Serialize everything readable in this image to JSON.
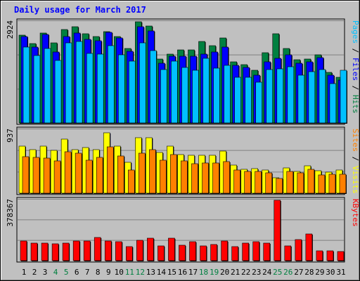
{
  "chart_data": {
    "type": "bar",
    "title": "Daily usage for March 2017",
    "categories": [
      "1",
      "2",
      "3",
      "4",
      "5",
      "6",
      "7",
      "8",
      "9",
      "10",
      "11",
      "12",
      "13",
      "14",
      "15",
      "16",
      "17",
      "18",
      "19",
      "20",
      "21",
      "22",
      "23",
      "24",
      "25",
      "26",
      "27",
      "28",
      "29",
      "30",
      "31"
    ],
    "weekend_days": [
      4,
      5,
      11,
      12,
      18,
      19,
      25,
      26
    ],
    "panels": [
      {
        "id": "hits-files-pages",
        "scale_label": "2924",
        "ymax": 2924,
        "legend": [
          {
            "text": "Pages",
            "color": "#00c0ff"
          },
          {
            "text": "Files",
            "color": "#0000ff"
          },
          {
            "text": "Hits",
            "color": "#008040"
          }
        ],
        "separator": " / ",
        "series": [
          {
            "name": "Hits",
            "color": "#008040",
            "values": [
              2540,
              2300,
              2600,
              2310,
              2710,
              2790,
              2580,
              2500,
              2630,
              2490,
              2160,
              2920,
              2800,
              1850,
              2000,
              2110,
              2120,
              2360,
              2240,
              2450,
              1770,
              1690,
              1530,
              2040,
              2570,
              2160,
              1830,
              1840,
              1970,
              1460,
              1330
            ]
          },
          {
            "name": "Files",
            "color": "#0000ff",
            "values": [
              2490,
              2200,
              2560,
              2050,
              2500,
              2600,
              2420,
              2370,
              2610,
              2450,
              2070,
              2780,
              2660,
              1720,
              1930,
              1930,
              1930,
              2000,
              2060,
              2190,
              1670,
              1600,
              1390,
              1770,
              1860,
              1960,
              1730,
              1760,
              1890,
              1380,
              1230
            ]
          },
          {
            "name": "Pages",
            "color": "#00c0ff",
            "values": [
              2190,
              1950,
              2160,
              1800,
              2320,
              2350,
              2020,
              1980,
              2240,
              1970,
              1780,
              2320,
              2100,
              1550,
              1780,
              1600,
              1530,
              1860,
              1580,
              1670,
              1310,
              1320,
              1170,
              1550,
              1560,
              1620,
              1390,
              1490,
              1540,
              1130,
              1520
            ]
          }
        ]
      },
      {
        "id": "visits-sites",
        "scale_label": "937",
        "ymax": 937,
        "legend": [
          {
            "text": "Sites",
            "color": "#ff8000"
          },
          {
            "text": "Visits",
            "color": "#ffff00"
          }
        ],
        "separator": " / ",
        "series": [
          {
            "name": "Visits",
            "color": "#ffff00",
            "values": [
              700,
              650,
              700,
              640,
              800,
              650,
              680,
              650,
              900,
              700,
              460,
              820,
              820,
              600,
              700,
              570,
              560,
              560,
              560,
              620,
              420,
              350,
              360,
              340,
              230,
              370,
              320,
              410,
              330,
              310,
              340
            ]
          },
          {
            "name": "Sites",
            "color": "#ff8000",
            "values": [
              540,
              530,
              520,
              480,
              610,
              590,
              490,
              530,
              690,
              550,
              340,
              590,
              650,
              490,
              570,
              480,
              440,
              450,
              450,
              470,
              340,
              320,
              320,
              300,
              220,
              320,
              300,
              350,
              270,
              280,
              280
            ]
          }
        ]
      },
      {
        "id": "kbytes",
        "scale_label": "378367",
        "ymax": 378367,
        "legend": [
          {
            "text": "KBytes",
            "color": "#ff0000"
          }
        ],
        "separator": "",
        "series": [
          {
            "name": "KBytes",
            "color": "#ff0000",
            "values": [
              123000,
              108000,
              110000,
              107000,
              108000,
              125000,
              122000,
              145000,
              124000,
              117000,
              86000,
              126000,
              140000,
              93000,
              140000,
              95000,
              120000,
              92000,
              103000,
              123000,
              86000,
              108000,
              118000,
              109000,
              378000,
              93000,
              131000,
              168000,
              60000,
              60000,
              59000
            ]
          }
        ]
      }
    ]
  }
}
